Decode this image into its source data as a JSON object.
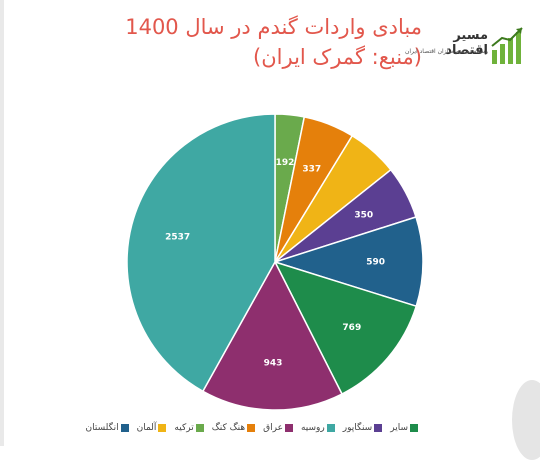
{
  "title": "مبادی واردات گندم در سال 1400 (منبع: گمرک ایران)",
  "logo": {
    "name": "مسیر اقتصاد",
    "tagline": "رسانه تصمیم سازان اقتصاد ایران",
    "accent": "#6fb23a"
  },
  "chart_data": {
    "type": "pie",
    "title": "مبادی واردات گندم در سال 1400 (منبع: گمرک ایران)",
    "slices": [
      {
        "label": "ترکیه",
        "value": 192,
        "color": "#6aaa4c"
      },
      {
        "label": "هنگ کنگ",
        "value": 337,
        "color": "#e5800b"
      },
      {
        "label": "آلمان",
        "value": 337,
        "color": "#f0b416",
        "data_label": ""
      },
      {
        "label": "سنگاپور",
        "value": 350,
        "color": "#5b3f92"
      },
      {
        "label": "انگلستان",
        "value": 590,
        "color": "#21618c"
      },
      {
        "label": "سایر",
        "value": 769,
        "color": "#1e8c4b"
      },
      {
        "label": "عراق",
        "value": 943,
        "color": "#8e2f6e"
      },
      {
        "label": "روسیه",
        "value": 2537,
        "color": "#3fa8a3"
      }
    ],
    "legend_order": [
      "انگلستان",
      "آلمان",
      "ترکیه",
      "هنگ کنگ",
      "عراق",
      "روسیه",
      "سنگاپور",
      "سایر"
    ],
    "legend_position": "bottom"
  }
}
